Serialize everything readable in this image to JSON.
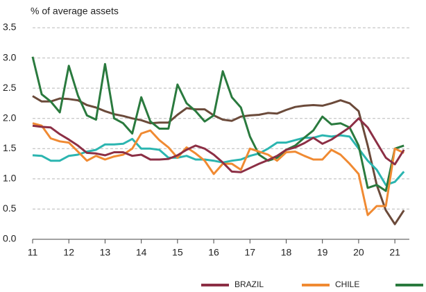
{
  "chart_data": {
    "type": "line",
    "y_label": "% of average assets",
    "x": [
      11,
      11.25,
      11.5,
      11.75,
      12,
      12.25,
      12.5,
      12.75,
      13,
      13.25,
      13.5,
      13.75,
      14,
      14.25,
      14.5,
      14.75,
      15,
      15.25,
      15.5,
      15.75,
      16,
      16.25,
      16.5,
      16.75,
      17,
      17.25,
      17.5,
      17.75,
      18,
      18.25,
      18.5,
      18.75,
      19,
      19.25,
      19.5,
      19.75,
      20,
      20.25,
      20.5,
      20.75,
      21,
      21.25
    ],
    "xlim": [
      11,
      21.4
    ],
    "xticks": [
      11,
      12,
      13,
      14,
      15,
      16,
      17,
      18,
      19,
      20,
      21
    ],
    "ylim": [
      0,
      3.5
    ],
    "yticks": [
      {
        "value": 0,
        "label": "0.0"
      },
      0.5,
      {
        "value": 1,
        "label": "1.0"
      },
      1.5,
      {
        "value": 2,
        "label": "2.0"
      },
      2.5,
      {
        "value": 3,
        "label": "3.0"
      },
      3.5
    ],
    "grid": true,
    "series": [
      {
        "name": "BRAZIL",
        "color": "#8c2f45",
        "values": [
          1.88,
          1.86,
          1.85,
          1.74,
          1.65,
          1.55,
          1.43,
          1.42,
          1.39,
          1.44,
          1.44,
          1.38,
          1.4,
          1.32,
          1.32,
          1.33,
          1.39,
          1.48,
          1.55,
          1.5,
          1.4,
          1.27,
          1.12,
          1.11,
          1.18,
          1.25,
          1.31,
          1.38,
          1.48,
          1.52,
          1.59,
          1.68,
          1.58,
          1.65,
          1.75,
          1.85,
          2.0,
          1.85,
          1.6,
          1.35,
          1.24,
          1.48
        ]
      },
      {
        "name": "CHILE",
        "color": "#f08a32",
        "values": [
          1.92,
          1.88,
          1.67,
          1.62,
          1.6,
          1.45,
          1.3,
          1.38,
          1.32,
          1.37,
          1.4,
          1.5,
          1.75,
          1.8,
          1.64,
          1.52,
          1.35,
          1.52,
          1.42,
          1.3,
          1.08,
          1.25,
          1.25,
          1.15,
          1.5,
          1.45,
          1.4,
          1.3,
          1.44,
          1.45,
          1.38,
          1.32,
          1.32,
          1.48,
          1.4,
          1.25,
          1.08,
          0.4,
          0.55,
          0.55,
          1.5,
          1.43
        ]
      },
      {
        "color": "#2a7a3e",
        "values": [
          3.02,
          2.4,
          2.28,
          2.1,
          2.87,
          2.38,
          2.05,
          1.98,
          2.9,
          2.0,
          1.92,
          1.75,
          2.35,
          1.95,
          1.83,
          1.83,
          2.56,
          2.25,
          2.12,
          1.95,
          2.05,
          2.78,
          2.35,
          2.18,
          1.7,
          1.4,
          1.3,
          1.35,
          1.48,
          1.55,
          1.68,
          1.8,
          2.03,
          1.9,
          1.92,
          1.85,
          1.55,
          0.85,
          0.9,
          0.8,
          1.5,
          1.55
        ]
      },
      {
        "color": "#2bb5b0",
        "values": [
          1.39,
          1.38,
          1.3,
          1.3,
          1.38,
          1.4,
          1.45,
          1.48,
          1.57,
          1.57,
          1.58,
          1.66,
          1.5,
          1.5,
          1.48,
          1.35,
          1.35,
          1.38,
          1.32,
          1.32,
          1.3,
          1.27,
          1.3,
          1.32,
          1.38,
          1.42,
          1.5,
          1.6,
          1.6,
          1.64,
          1.68,
          1.68,
          1.72,
          1.7,
          1.72,
          1.7,
          1.5,
          1.3,
          1.15,
          0.9,
          0.95,
          1.12
        ]
      },
      {
        "color": "#6b4a3a",
        "values": [
          2.37,
          2.28,
          2.28,
          2.33,
          2.32,
          2.3,
          2.22,
          2.18,
          2.12,
          2.07,
          2.04,
          2.0,
          1.97,
          1.92,
          1.93,
          1.93,
          2.06,
          2.17,
          2.15,
          2.15,
          2.05,
          1.98,
          1.96,
          2.03,
          2.05,
          2.06,
          2.09,
          2.08,
          2.14,
          2.19,
          2.21,
          2.22,
          2.21,
          2.25,
          2.3,
          2.25,
          2.12,
          1.55,
          0.9,
          0.48,
          0.25,
          0.48
        ]
      }
    ]
  }
}
